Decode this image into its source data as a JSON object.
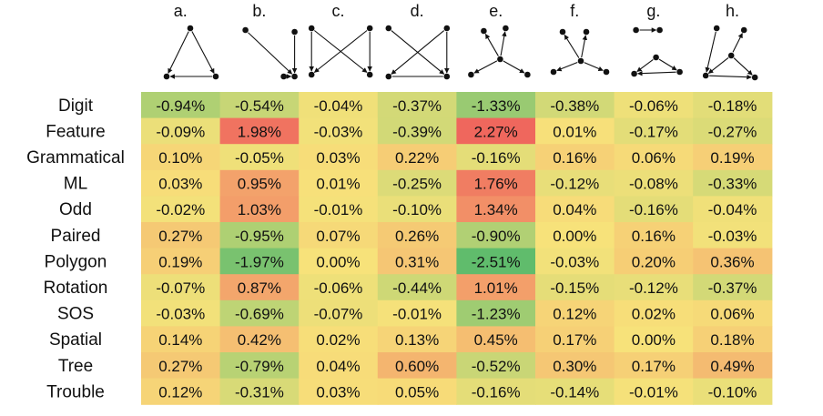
{
  "chart_data": {
    "type": "heatmap",
    "title": "",
    "xlabel": "",
    "ylabel": "",
    "columns": [
      "a.",
      "b.",
      "c.",
      "d.",
      "e.",
      "f.",
      "g.",
      "h."
    ],
    "rows": [
      "Digit",
      "Feature",
      "Grammatical",
      "ML",
      "Odd",
      "Paired",
      "Polygon",
      "Rotation",
      "SOS",
      "Spatial",
      "Tree",
      "Trouble"
    ],
    "values": [
      [
        -0.94,
        -0.54,
        -0.04,
        -0.37,
        -1.33,
        -0.38,
        -0.06,
        -0.18
      ],
      [
        -0.09,
        1.98,
        -0.03,
        -0.39,
        2.27,
        0.01,
        -0.17,
        -0.27
      ],
      [
        0.1,
        -0.05,
        0.03,
        0.22,
        -0.16,
        0.16,
        0.06,
        0.19
      ],
      [
        0.03,
        0.95,
        0.01,
        -0.25,
        1.76,
        -0.12,
        -0.08,
        -0.33
      ],
      [
        -0.02,
        1.03,
        -0.01,
        -0.1,
        1.34,
        0.04,
        -0.16,
        -0.04
      ],
      [
        0.27,
        -0.95,
        0.07,
        0.26,
        -0.9,
        0.0,
        0.16,
        -0.03
      ],
      [
        0.19,
        -1.97,
        0.0,
        0.31,
        -2.51,
        -0.03,
        0.2,
        0.36
      ],
      [
        -0.07,
        0.87,
        -0.06,
        -0.44,
        1.01,
        -0.15,
        -0.12,
        -0.37
      ],
      [
        -0.03,
        -0.69,
        -0.07,
        -0.01,
        -1.23,
        0.12,
        0.02,
        0.06
      ],
      [
        0.14,
        0.42,
        0.02,
        0.13,
        0.45,
        0.17,
        0.0,
        0.18
      ],
      [
        0.27,
        -0.79,
        0.04,
        0.6,
        -0.52,
        0.3,
        0.17,
        0.49
      ],
      [
        0.12,
        -0.31,
        0.03,
        0.05,
        -0.16,
        -0.14,
        -0.01,
        -0.1
      ]
    ],
    "value_suffix": "%",
    "color_scale": {
      "negative": "#5cbb6c",
      "neutral": "#f7e27a",
      "positive": "#ee5a5a"
    },
    "graph_icons": "small directed graphs (nodes with arrows) above each column"
  }
}
